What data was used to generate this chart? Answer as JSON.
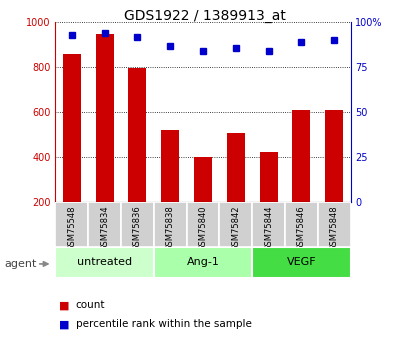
{
  "title": "GDS1922 / 1389913_at",
  "samples": [
    "GSM75548",
    "GSM75834",
    "GSM75836",
    "GSM75838",
    "GSM75840",
    "GSM75842",
    "GSM75844",
    "GSM75846",
    "GSM75848"
  ],
  "counts": [
    860,
    950,
    795,
    520,
    400,
    505,
    420,
    608,
    610
  ],
  "percentile_ranks": [
    93,
    94,
    92,
    87,
    84,
    86,
    84,
    89,
    90
  ],
  "ylim_left": [
    200,
    1000
  ],
  "ylim_right": [
    0,
    100
  ],
  "yticks_left": [
    200,
    400,
    600,
    800,
    1000
  ],
  "yticks_right": [
    0,
    25,
    50,
    75,
    100
  ],
  "bar_color": "#cc0000",
  "dot_color": "#0000cc",
  "bar_bottom": 200,
  "agent_label": "agent",
  "legend_count": "count",
  "legend_percentile": "percentile rank within the sample",
  "group_configs": [
    {
      "start": 0,
      "end": 2,
      "label": "untreated",
      "color": "#ccffcc"
    },
    {
      "start": 3,
      "end": 5,
      "label": "Ang-1",
      "color": "#aaffaa"
    },
    {
      "start": 6,
      "end": 8,
      "label": "VEGF",
      "color": "#44dd44"
    }
  ],
  "sample_box_color": "#d0d0d0",
  "fig_width": 4.1,
  "fig_height": 3.45,
  "dpi": 100
}
